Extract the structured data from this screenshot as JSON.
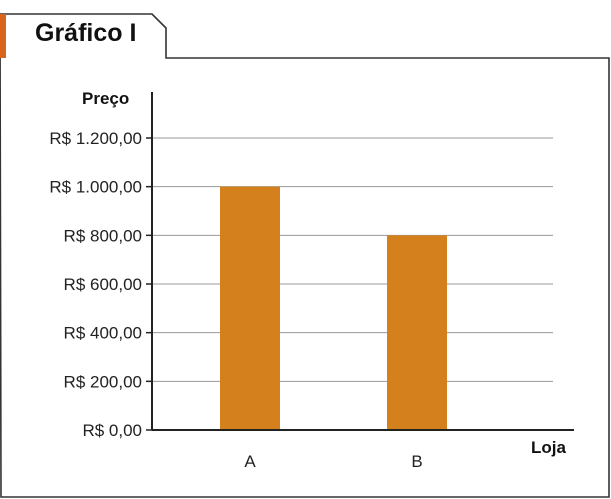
{
  "panel": {
    "tab_title": "Gráfico I"
  },
  "colors": {
    "accent": "#D9641E",
    "bar": "#D4811D",
    "grid": "#9A9A9A",
    "axis": "#222222",
    "frame": "#333333"
  },
  "chart_data": {
    "type": "bar",
    "categories": [
      "A",
      "B"
    ],
    "values": [
      1000,
      800
    ],
    "ylabel": "Preço",
    "xlabel": "Loja",
    "ylim": [
      0,
      1200
    ],
    "yticks": [
      0,
      200,
      400,
      600,
      800,
      1000,
      1200
    ],
    "ytick_labels": [
      "R$ 0,00",
      "R$ 200,00",
      "R$ 400,00",
      "R$ 600,00",
      "R$ 800,00",
      "R$ 1.000,00",
      "R$ 1.200,00"
    ],
    "grid": true,
    "legend": "none"
  }
}
